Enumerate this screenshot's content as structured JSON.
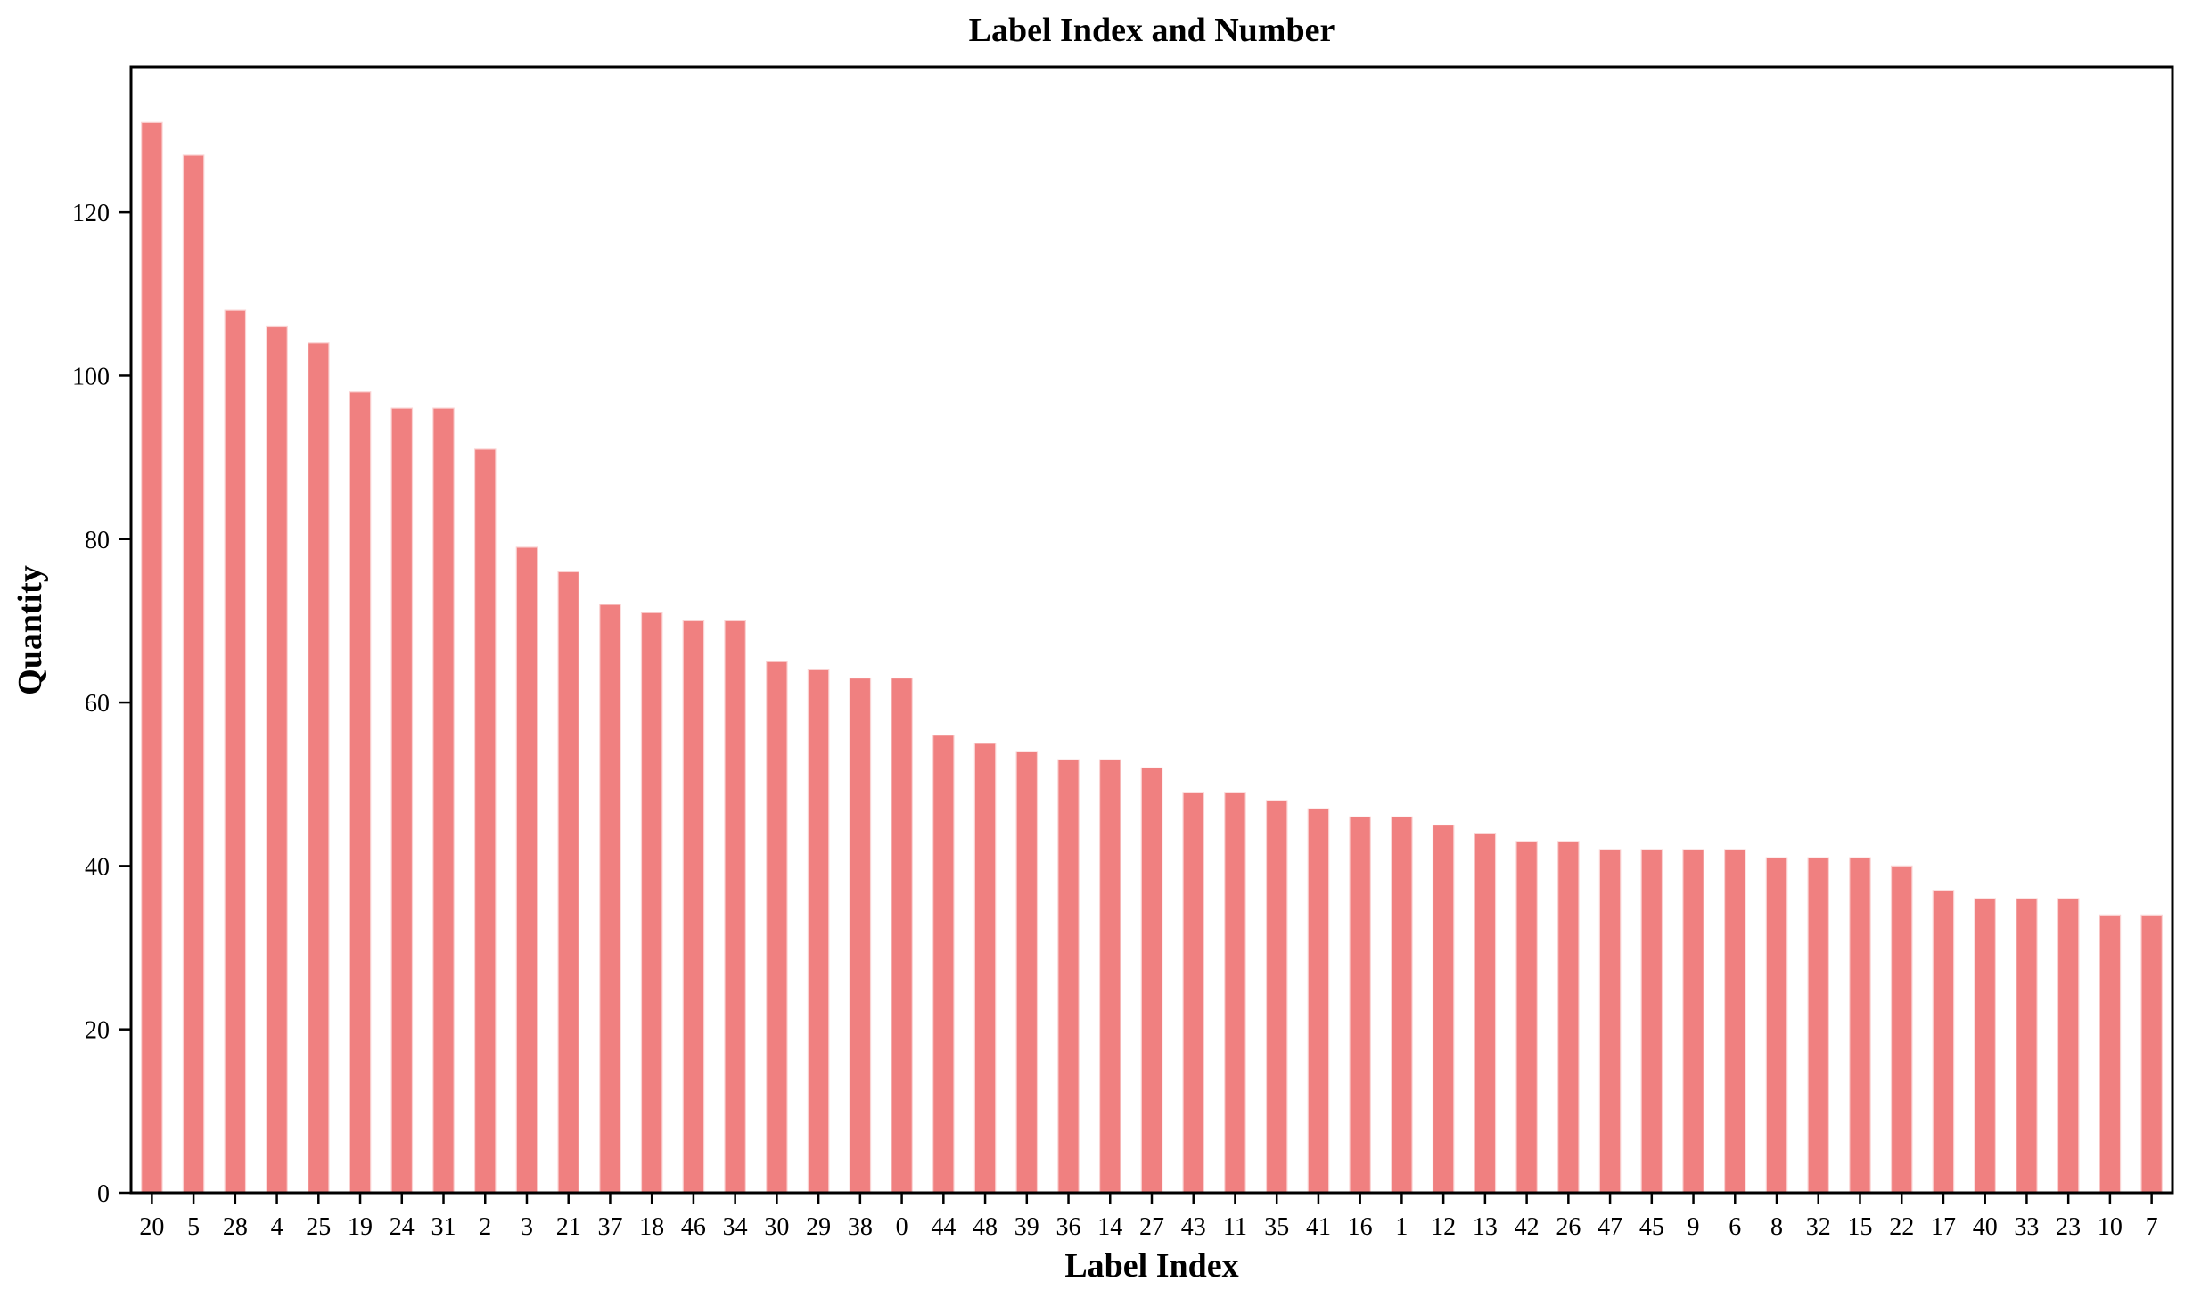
{
  "chart": {
    "title": "Label Index and Number",
    "xlabel": "Label Index",
    "ylabel": "Quantity"
  },
  "chart_data": {
    "type": "bar",
    "title": "Label Index and Number",
    "xlabel": "Label Index",
    "ylabel": "Quantity",
    "categories": [
      "20",
      "5",
      "28",
      "4",
      "25",
      "19",
      "24",
      "31",
      "2",
      "3",
      "21",
      "37",
      "18",
      "46",
      "34",
      "30",
      "29",
      "38",
      "0",
      "44",
      "48",
      "39",
      "36",
      "14",
      "27",
      "43",
      "11",
      "35",
      "41",
      "16",
      "1",
      "12",
      "13",
      "42",
      "26",
      "47",
      "45",
      "9",
      "6",
      "8",
      "32",
      "15",
      "22",
      "17",
      "40",
      "33",
      "23",
      "10",
      "7"
    ],
    "values": [
      131,
      127,
      108,
      106,
      104,
      98,
      96,
      96,
      91,
      79,
      76,
      72,
      71,
      70,
      70,
      65,
      64,
      63,
      63,
      56,
      55,
      54,
      53,
      53,
      52,
      49,
      49,
      48,
      47,
      46,
      46,
      45,
      44,
      43,
      43,
      42,
      42,
      42,
      42,
      41,
      41,
      41,
      40,
      37,
      36,
      36,
      36,
      34,
      34
    ],
    "yticks": [
      0,
      20,
      40,
      60,
      80,
      100,
      120
    ],
    "ylim": [
      0,
      137.8
    ],
    "bar_color": "#f08080",
    "bar_edge_color": "#fad2d2",
    "axis_color": "#000000",
    "grid": "off",
    "legend": "none"
  }
}
